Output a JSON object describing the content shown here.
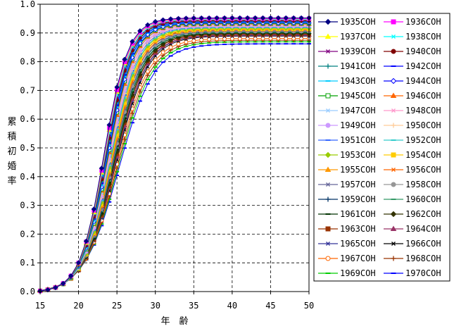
{
  "chart_data": {
    "type": "line",
    "xlabel": "年　齢",
    "ylabel": "累積初婚率",
    "xlim": [
      15,
      50
    ],
    "ylim": [
      0.0,
      1.0
    ],
    "x_ticks": [
      "15",
      "20",
      "25",
      "30",
      "35",
      "40",
      "45",
      "50"
    ],
    "y_ticks": [
      "0.0",
      "0.1",
      "0.2",
      "0.3",
      "0.4",
      "0.5",
      "0.6",
      "0.7",
      "0.8",
      "0.9",
      "1.0"
    ],
    "grid": true,
    "legend_position": "right",
    "x": [
      15,
      16,
      17,
      18,
      19,
      20,
      21,
      22,
      23,
      24,
      25,
      26,
      27,
      28,
      29,
      30,
      31,
      32,
      33,
      34,
      35,
      36,
      37,
      38,
      39,
      40,
      41,
      42,
      43,
      44,
      45,
      46,
      47,
      48,
      49,
      50
    ],
    "series": [
      {
        "name": "1935COH",
        "color": "#000080",
        "marker": "diamond-filled",
        "final": 0.955,
        "midpoint": 23.3,
        "steep": 0.64
      },
      {
        "name": "1936COH",
        "color": "#ff00ff",
        "marker": "square-filled",
        "final": 0.953,
        "midpoint": 23.35,
        "steep": 0.63
      },
      {
        "name": "1937COH",
        "color": "#ffff00",
        "marker": "triangle-filled",
        "final": 0.952,
        "midpoint": 23.4,
        "steep": 0.63
      },
      {
        "name": "1938COH",
        "color": "#00ffff",
        "marker": "x",
        "final": 0.95,
        "midpoint": 23.45,
        "steep": 0.62
      },
      {
        "name": "1939COH",
        "color": "#800080",
        "marker": "x",
        "final": 0.948,
        "midpoint": 23.5,
        "steep": 0.62
      },
      {
        "name": "1940COH",
        "color": "#800000",
        "marker": "circle-filled",
        "final": 0.946,
        "midpoint": 23.55,
        "steep": 0.61
      },
      {
        "name": "1941COH",
        "color": "#008080",
        "marker": "plus",
        "final": 0.944,
        "midpoint": 23.6,
        "steep": 0.61
      },
      {
        "name": "1942COH",
        "color": "#0000ff",
        "marker": "dash",
        "final": 0.942,
        "midpoint": 23.65,
        "steep": 0.6
      },
      {
        "name": "1943COH",
        "color": "#00ccff",
        "marker": "dash",
        "final": 0.94,
        "midpoint": 23.7,
        "steep": 0.6
      },
      {
        "name": "1944COH",
        "color": "#0000ff",
        "marker": "diamond-open",
        "final": 0.938,
        "midpoint": 23.75,
        "steep": 0.59
      },
      {
        "name": "1945COH",
        "color": "#00a000",
        "marker": "square-open",
        "final": 0.936,
        "midpoint": 23.8,
        "steep": 0.59
      },
      {
        "name": "1946COH",
        "color": "#ff6600",
        "marker": "triangle-filled",
        "final": 0.934,
        "midpoint": 23.85,
        "steep": 0.58
      },
      {
        "name": "1947COH",
        "color": "#99ccff",
        "marker": "x",
        "final": 0.932,
        "midpoint": 23.9,
        "steep": 0.58
      },
      {
        "name": "1948COH",
        "color": "#ff99cc",
        "marker": "x",
        "final": 0.93,
        "midpoint": 23.95,
        "steep": 0.57
      },
      {
        "name": "1949COH",
        "color": "#cc99ff",
        "marker": "circle-filled",
        "final": 0.928,
        "midpoint": 24.0,
        "steep": 0.57
      },
      {
        "name": "1950COH",
        "color": "#ffcc99",
        "marker": "plus",
        "final": 0.926,
        "midpoint": 24.05,
        "steep": 0.56
      },
      {
        "name": "1951COH",
        "color": "#3366ff",
        "marker": "dash",
        "final": 0.924,
        "midpoint": 24.1,
        "steep": 0.56
      },
      {
        "name": "1952COH",
        "color": "#33cccc",
        "marker": "dash",
        "final": 0.922,
        "midpoint": 24.15,
        "steep": 0.55
      },
      {
        "name": "1953COH",
        "color": "#99cc00",
        "marker": "diamond-filled",
        "final": 0.92,
        "midpoint": 24.2,
        "steep": 0.55
      },
      {
        "name": "1954COH",
        "color": "#ffcc00",
        "marker": "square-filled",
        "final": 0.918,
        "midpoint": 24.25,
        "steep": 0.54
      },
      {
        "name": "1955COH",
        "color": "#ff9900",
        "marker": "triangle-filled",
        "final": 0.916,
        "midpoint": 24.3,
        "steep": 0.54
      },
      {
        "name": "1956COH",
        "color": "#ff6600",
        "marker": "x",
        "final": 0.914,
        "midpoint": 24.35,
        "steep": 0.53
      },
      {
        "name": "1957COH",
        "color": "#666699",
        "marker": "x",
        "final": 0.912,
        "midpoint": 24.4,
        "steep": 0.53
      },
      {
        "name": "1958COH",
        "color": "#969696",
        "marker": "circle-filled",
        "final": 0.91,
        "midpoint": 24.45,
        "steep": 0.52
      },
      {
        "name": "1959COH",
        "color": "#003366",
        "marker": "plus",
        "final": 0.908,
        "midpoint": 24.5,
        "steep": 0.52
      },
      {
        "name": "1960COH",
        "color": "#339966",
        "marker": "dash",
        "final": 0.906,
        "midpoint": 24.55,
        "steep": 0.51
      },
      {
        "name": "1961COH",
        "color": "#003300",
        "marker": "dash",
        "final": 0.904,
        "midpoint": 24.6,
        "steep": 0.51
      },
      {
        "name": "1962COH",
        "color": "#333300",
        "marker": "diamond-filled",
        "final": 0.902,
        "midpoint": 24.65,
        "steep": 0.5
      },
      {
        "name": "1963COH",
        "color": "#993300",
        "marker": "square-filled",
        "final": 0.9,
        "midpoint": 24.7,
        "steep": 0.5
      },
      {
        "name": "1964COH",
        "color": "#993366",
        "marker": "triangle-filled",
        "final": 0.898,
        "midpoint": 24.75,
        "steep": 0.49
      },
      {
        "name": "1965COH",
        "color": "#333399",
        "marker": "x",
        "final": 0.896,
        "midpoint": 24.8,
        "steep": 0.49
      },
      {
        "name": "1966COH",
        "color": "#000000",
        "marker": "x",
        "final": 0.894,
        "midpoint": 24.85,
        "steep": 0.48
      },
      {
        "name": "1967COH",
        "color": "#ff6600",
        "marker": "circle-open",
        "final": 0.886,
        "midpoint": 24.95,
        "steep": 0.47
      },
      {
        "name": "1968COH",
        "color": "#993300",
        "marker": "plus",
        "final": 0.88,
        "midpoint": 25.05,
        "steep": 0.46
      },
      {
        "name": "1969COH",
        "color": "#00cc00",
        "marker": "dash",
        "final": 0.875,
        "midpoint": 25.15,
        "steep": 0.45
      },
      {
        "name": "1970COH",
        "color": "#0000ff",
        "marker": "dash",
        "final": 0.868,
        "midpoint": 25.25,
        "steep": 0.44
      }
    ]
  }
}
